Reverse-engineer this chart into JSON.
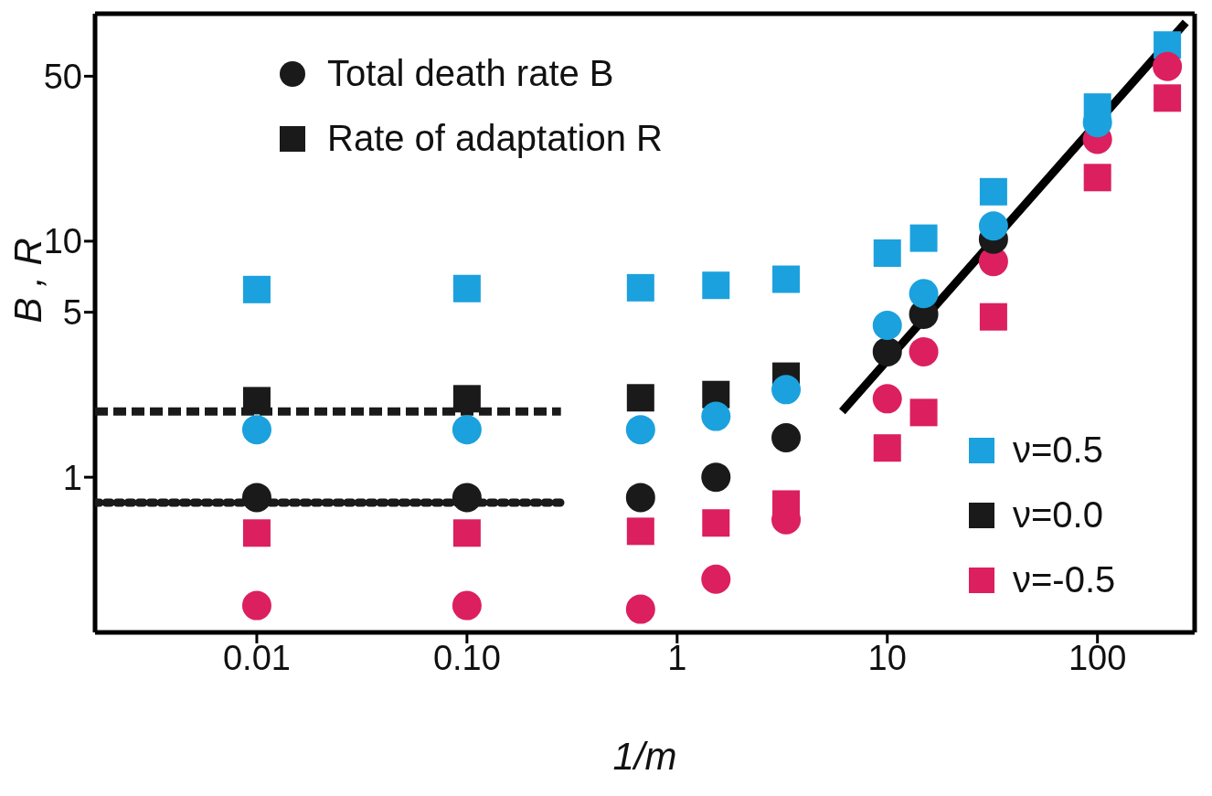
{
  "chart_data": {
    "type": "scatter",
    "xlabel": "1/m",
    "ylabel": "B , R",
    "log": "xy",
    "xlim": [
      0.0017,
      290
    ],
    "ylim": [
      0.22,
      92
    ],
    "xticks": [
      0.01,
      {
        "value": 0.1,
        "label": "0.10"
      },
      1,
      10,
      100
    ],
    "yticks": [
      1,
      5,
      10,
      50
    ],
    "annotations": [
      "Total death rate B",
      "Rate of adaptation R",
      "ν=0.5",
      "ν=0.0",
      "ν=-0.5"
    ],
    "x": [
      0.01,
      0.1,
      0.67,
      1.53,
      3.3,
      10,
      14.9,
      32,
      100,
      215
    ],
    "series": [
      {
        "type": "line",
        "color": "#1a1a1a",
        "line_style": "dashed",
        "x": [
          0.0017,
          0.28
        ],
        "values": [
          1.9,
          1.9
        ]
      },
      {
        "type": "line",
        "color": "#1a1a1a",
        "line_style": "dotted",
        "x": [
          0.0017,
          0.28
        ],
        "values": [
          0.78,
          0.78
        ]
      },
      {
        "type": "line",
        "color": "#000000",
        "line_style": "solid",
        "x": [
          6.1,
          263
        ],
        "values": [
          1.9,
          84.5
        ]
      },
      {
        "color": "#dc1f5e",
        "marker": "square",
        "values": [
          0.58,
          0.58,
          0.59,
          0.64,
          0.77,
          1.33,
          1.88,
          4.78,
          18.6,
          40.4
        ]
      },
      {
        "color": "#1a1a1a",
        "marker": "square",
        "values": [
          2.11,
          2.15,
          2.17,
          2.24,
          2.68,
          null,
          null,
          null,
          null,
          null
        ]
      },
      {
        "color": "#1ba1dd",
        "marker": "square",
        "values": [
          6.24,
          6.3,
          6.35,
          6.5,
          6.9,
          8.9,
          10.3,
          16.2,
          37,
          67.8
        ]
      },
      {
        "color": "#dc1f5e",
        "marker": "circle",
        "values": [
          0.286,
          0.286,
          0.276,
          0.37,
          0.66,
          2.15,
          3.4,
          8.2,
          27,
          55
        ]
      },
      {
        "color": "#1a1a1a",
        "marker": "circle",
        "values": [
          0.82,
          0.82,
          0.82,
          1.0,
          1.47,
          3.4,
          4.9,
          10.2,
          null,
          null
        ]
      },
      {
        "color": "#1ba1dd",
        "marker": "circle",
        "values": [
          1.59,
          1.59,
          1.59,
          1.81,
          2.35,
          4.4,
          6.0,
          11.6,
          31.8,
          null
        ]
      }
    ]
  }
}
